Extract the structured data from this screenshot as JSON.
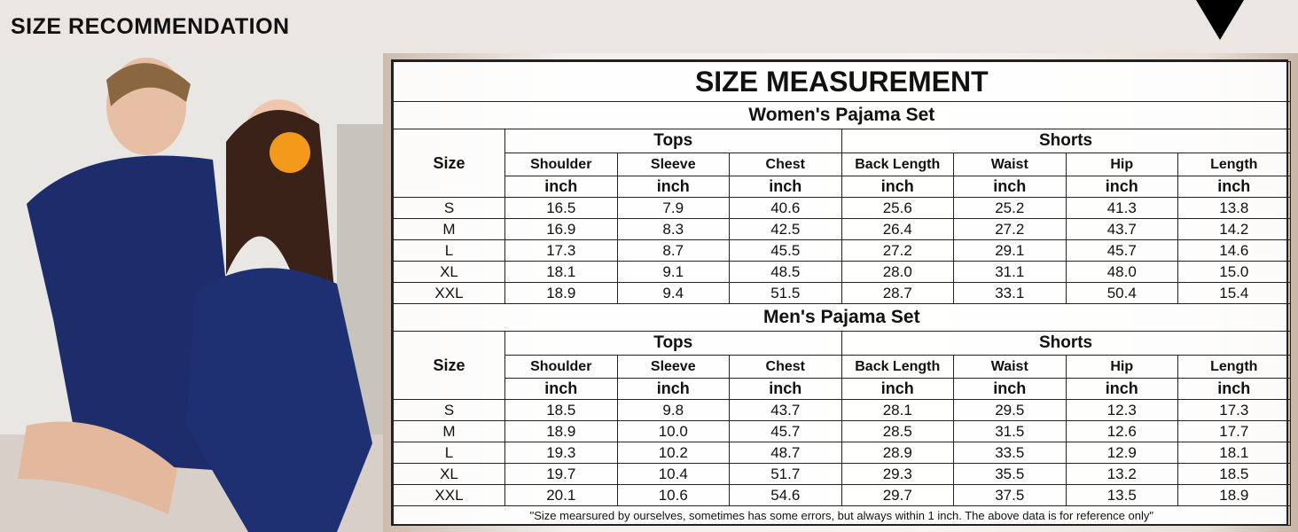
{
  "header": {
    "title": "SIZE RECOMMENDATION"
  },
  "table": {
    "title": "SIZE MEASUREMENT",
    "size_label": "Size",
    "groups": [
      "Tops",
      "Shorts"
    ],
    "columns": [
      "Shoulder",
      "Sleeve",
      "Chest",
      "Back Length",
      "Waist",
      "Hip",
      "Length"
    ],
    "unit": "inch",
    "sets": [
      {
        "name": "Women's Pajama Set",
        "rows": [
          [
            "S",
            "16.5",
            "7.9",
            "40.6",
            "25.6",
            "25.2",
            "41.3",
            "13.8"
          ],
          [
            "M",
            "16.9",
            "8.3",
            "42.5",
            "26.4",
            "27.2",
            "43.7",
            "14.2"
          ],
          [
            "L",
            "17.3",
            "8.7",
            "45.5",
            "27.2",
            "29.1",
            "45.7",
            "14.6"
          ],
          [
            "XL",
            "18.1",
            "9.1",
            "48.5",
            "28.0",
            "31.1",
            "48.0",
            "15.0"
          ],
          [
            "XXL",
            "18.9",
            "9.4",
            "51.5",
            "28.7",
            "33.1",
            "50.4",
            "15.4"
          ]
        ]
      },
      {
        "name": "Men's Pajama Set",
        "rows": [
          [
            "S",
            "18.5",
            "9.8",
            "43.7",
            "28.1",
            "29.5",
            "12.3",
            "17.3"
          ],
          [
            "M",
            "18.9",
            "10.0",
            "45.7",
            "28.5",
            "31.5",
            "12.6",
            "17.7"
          ],
          [
            "L",
            "19.3",
            "10.2",
            "48.7",
            "28.9",
            "33.5",
            "12.9",
            "18.1"
          ],
          [
            "XL",
            "19.7",
            "10.4",
            "51.7",
            "29.3",
            "35.5",
            "13.2",
            "18.5"
          ],
          [
            "XXL",
            "20.1",
            "10.6",
            "54.6",
            "29.7",
            "37.5",
            "13.5",
            "18.9"
          ]
        ]
      }
    ],
    "note": "\"Size mearsured by ourselves, sometimes has some errors, but always within 1 inch. The above data is for reference only\""
  }
}
